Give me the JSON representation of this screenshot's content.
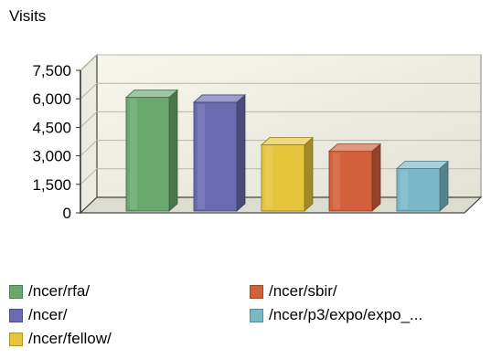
{
  "chart_data": {
    "type": "bar",
    "title": "Visits",
    "categories": [
      "/ncer/rfa/",
      "/ncer/",
      "/ncer/fellow/",
      "/ncer/sbir/",
      "/ncer/p3/expo/expo_..."
    ],
    "values": [
      6080,
      5820,
      3580,
      3240,
      2330
    ],
    "colors": [
      "#6aa870",
      "#6a6ab0",
      "#e6c43c",
      "#d2603a",
      "#79b9c7"
    ],
    "ylim": [
      0,
      7500
    ],
    "yticks": [
      "0",
      "1,500",
      "3,000",
      "4,500",
      "6,000",
      "7,500"
    ],
    "grid": true,
    "legend_position": "bottom",
    "style": "3d"
  }
}
